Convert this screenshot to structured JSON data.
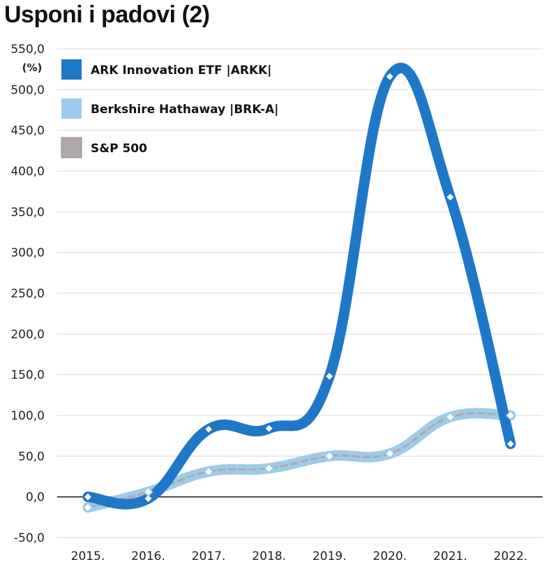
{
  "title": "Usponi i padovi (2)",
  "chart_data": {
    "type": "line",
    "title": "Usponi i padovi (2)",
    "y_unit": "(%)",
    "categories": [
      "2015.",
      "2016.",
      "2017.",
      "2018.",
      "2019.",
      "2020.",
      "2021.",
      "2022."
    ],
    "y_ticks": [
      "550,0",
      "500,0",
      "450,0",
      "400,0",
      "350,0",
      "300,0",
      "250,0",
      "200,0",
      "150,0",
      "100,0",
      "50,0",
      "0,0",
      "-50,0"
    ],
    "ylim": [
      -50,
      550
    ],
    "grid": true,
    "legend_position": "top-left",
    "series": [
      {
        "name": "ARK Innovation ETF |ARKK|",
        "color": "#1f77c8",
        "values": [
          0,
          -2,
          83,
          84,
          148,
          516,
          368,
          65
        ]
      },
      {
        "name": "Berkshire Hathaway |BRK-A|",
        "color": "#9ccbeb",
        "values": [
          -13,
          6,
          31,
          35,
          50,
          53,
          98,
          100
        ]
      },
      {
        "name": "S&P 500",
        "color": "#b0a8a8",
        "values": [
          -13,
          6,
          31,
          35,
          50,
          53,
          98,
          100
        ]
      }
    ]
  }
}
